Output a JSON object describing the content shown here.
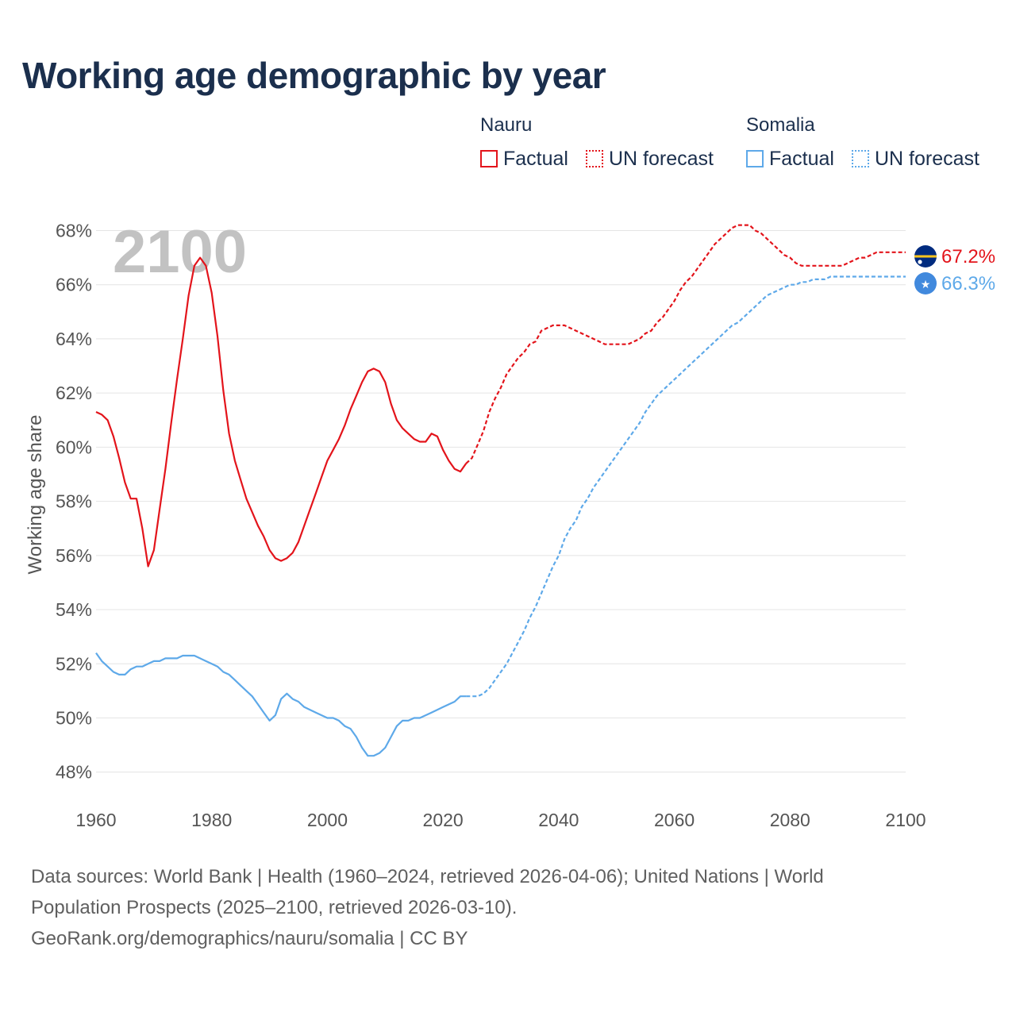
{
  "title": "Working age demographic by year",
  "legend": [
    {
      "country": "Nauru",
      "factual_label": "Factual",
      "forecast_label": "UN forecast",
      "color": "#e3141b"
    },
    {
      "country": "Somalia",
      "factual_label": "Factual",
      "forecast_label": "UN forecast",
      "color": "#5ea9e9"
    }
  ],
  "footer": {
    "line1": "Data sources: World Bank | Health (1960–2024, retrieved 2026-04-06); United Nations | World",
    "line2": "Population Prospects (2025–2100, retrieved 2026-03-10).",
    "line3": "GeoRank.org/demographics/nauru/somalia | CC BY"
  },
  "chart_data": {
    "type": "line",
    "title": "Working age demographic by year",
    "xlabel": "",
    "ylabel": "Working age share",
    "year_overlay": "2100",
    "xlim": [
      1960,
      2100
    ],
    "ylim": [
      47.2,
      68.6
    ],
    "x_ticks": [
      1960,
      1980,
      2000,
      2020,
      2040,
      2060,
      2080,
      2100
    ],
    "y_ticks": [
      48,
      50,
      52,
      54,
      56,
      58,
      60,
      62,
      64,
      66,
      68
    ],
    "y_tick_labels": [
      "48%",
      "50%",
      "52%",
      "54%",
      "56%",
      "58%",
      "60%",
      "62%",
      "64%",
      "66%",
      "68%"
    ],
    "grid": true,
    "forecast_start": 2024,
    "series": [
      {
        "name": "Nauru",
        "color": "#e3141b",
        "end_label": "67.2%",
        "points": [
          [
            1960,
            61.3
          ],
          [
            1961,
            61.2
          ],
          [
            1962,
            61.0
          ],
          [
            1963,
            60.4
          ],
          [
            1964,
            59.6
          ],
          [
            1965,
            58.7
          ],
          [
            1966,
            58.1
          ],
          [
            1967,
            58.1
          ],
          [
            1968,
            57.0
          ],
          [
            1969,
            55.6
          ],
          [
            1970,
            56.2
          ],
          [
            1971,
            57.7
          ],
          [
            1972,
            59.2
          ],
          [
            1973,
            60.9
          ],
          [
            1974,
            62.5
          ],
          [
            1975,
            64.0
          ],
          [
            1976,
            65.6
          ],
          [
            1977,
            66.7
          ],
          [
            1978,
            67.0
          ],
          [
            1979,
            66.7
          ],
          [
            1980,
            65.7
          ],
          [
            1981,
            64.1
          ],
          [
            1982,
            62.1
          ],
          [
            1983,
            60.5
          ],
          [
            1984,
            59.5
          ],
          [
            1985,
            58.8
          ],
          [
            1986,
            58.1
          ],
          [
            1987,
            57.6
          ],
          [
            1988,
            57.1
          ],
          [
            1989,
            56.7
          ],
          [
            1990,
            56.2
          ],
          [
            1991,
            55.9
          ],
          [
            1992,
            55.8
          ],
          [
            1993,
            55.9
          ],
          [
            1994,
            56.1
          ],
          [
            1995,
            56.5
          ],
          [
            1996,
            57.1
          ],
          [
            1997,
            57.7
          ],
          [
            1998,
            58.3
          ],
          [
            1999,
            58.9
          ],
          [
            2000,
            59.5
          ],
          [
            2001,
            59.9
          ],
          [
            2002,
            60.3
          ],
          [
            2003,
            60.8
          ],
          [
            2004,
            61.4
          ],
          [
            2005,
            61.9
          ],
          [
            2006,
            62.4
          ],
          [
            2007,
            62.8
          ],
          [
            2008,
            62.9
          ],
          [
            2009,
            62.8
          ],
          [
            2010,
            62.4
          ],
          [
            2011,
            61.6
          ],
          [
            2012,
            61.0
          ],
          [
            2013,
            60.7
          ],
          [
            2014,
            60.5
          ],
          [
            2015,
            60.3
          ],
          [
            2016,
            60.2
          ],
          [
            2017,
            60.2
          ],
          [
            2018,
            60.5
          ],
          [
            2019,
            60.4
          ],
          [
            2020,
            59.9
          ],
          [
            2021,
            59.5
          ],
          [
            2022,
            59.2
          ],
          [
            2023,
            59.1
          ],
          [
            2024,
            59.4
          ],
          [
            2025,
            59.6
          ],
          [
            2026,
            60.1
          ],
          [
            2027,
            60.6
          ],
          [
            2028,
            61.3
          ],
          [
            2029,
            61.8
          ],
          [
            2030,
            62.2
          ],
          [
            2031,
            62.7
          ],
          [
            2032,
            63.0
          ],
          [
            2033,
            63.3
          ],
          [
            2034,
            63.5
          ],
          [
            2035,
            63.8
          ],
          [
            2036,
            63.9
          ],
          [
            2037,
            64.3
          ],
          [
            2038,
            64.4
          ],
          [
            2039,
            64.5
          ],
          [
            2040,
            64.5
          ],
          [
            2041,
            64.5
          ],
          [
            2042,
            64.4
          ],
          [
            2043,
            64.3
          ],
          [
            2044,
            64.2
          ],
          [
            2045,
            64.1
          ],
          [
            2046,
            64.0
          ],
          [
            2047,
            63.9
          ],
          [
            2048,
            63.8
          ],
          [
            2049,
            63.8
          ],
          [
            2050,
            63.8
          ],
          [
            2051,
            63.8
          ],
          [
            2052,
            63.8
          ],
          [
            2053,
            63.9
          ],
          [
            2054,
            64.0
          ],
          [
            2055,
            64.2
          ],
          [
            2056,
            64.3
          ],
          [
            2057,
            64.6
          ],
          [
            2058,
            64.8
          ],
          [
            2059,
            65.1
          ],
          [
            2060,
            65.4
          ],
          [
            2061,
            65.8
          ],
          [
            2062,
            66.1
          ],
          [
            2063,
            66.3
          ],
          [
            2064,
            66.6
          ],
          [
            2065,
            66.9
          ],
          [
            2066,
            67.2
          ],
          [
            2067,
            67.5
          ],
          [
            2068,
            67.7
          ],
          [
            2069,
            67.9
          ],
          [
            2070,
            68.1
          ],
          [
            2071,
            68.2
          ],
          [
            2072,
            68.2
          ],
          [
            2073,
            68.2
          ],
          [
            2074,
            68.0
          ],
          [
            2075,
            67.9
          ],
          [
            2076,
            67.7
          ],
          [
            2077,
            67.5
          ],
          [
            2078,
            67.3
          ],
          [
            2079,
            67.1
          ],
          [
            2080,
            67.0
          ],
          [
            2081,
            66.8
          ],
          [
            2082,
            66.7
          ],
          [
            2083,
            66.7
          ],
          [
            2084,
            66.7
          ],
          [
            2085,
            66.7
          ],
          [
            2086,
            66.7
          ],
          [
            2087,
            66.7
          ],
          [
            2088,
            66.7
          ],
          [
            2089,
            66.7
          ],
          [
            2090,
            66.8
          ],
          [
            2091,
            66.9
          ],
          [
            2092,
            67.0
          ],
          [
            2093,
            67.0
          ],
          [
            2094,
            67.1
          ],
          [
            2095,
            67.2
          ],
          [
            2096,
            67.2
          ],
          [
            2097,
            67.2
          ],
          [
            2098,
            67.2
          ],
          [
            2099,
            67.2
          ],
          [
            2100,
            67.2
          ]
        ]
      },
      {
        "name": "Somalia",
        "color": "#5ea9e9",
        "end_label": "66.3%",
        "points": [
          [
            1960,
            52.4
          ],
          [
            1961,
            52.1
          ],
          [
            1962,
            51.9
          ],
          [
            1963,
            51.7
          ],
          [
            1964,
            51.6
          ],
          [
            1965,
            51.6
          ],
          [
            1966,
            51.8
          ],
          [
            1967,
            51.9
          ],
          [
            1968,
            51.9
          ],
          [
            1969,
            52.0
          ],
          [
            1970,
            52.1
          ],
          [
            1971,
            52.1
          ],
          [
            1972,
            52.2
          ],
          [
            1973,
            52.2
          ],
          [
            1974,
            52.2
          ],
          [
            1975,
            52.3
          ],
          [
            1976,
            52.3
          ],
          [
            1977,
            52.3
          ],
          [
            1978,
            52.2
          ],
          [
            1979,
            52.1
          ],
          [
            1980,
            52.0
          ],
          [
            1981,
            51.9
          ],
          [
            1982,
            51.7
          ],
          [
            1983,
            51.6
          ],
          [
            1984,
            51.4
          ],
          [
            1985,
            51.2
          ],
          [
            1986,
            51.0
          ],
          [
            1987,
            50.8
          ],
          [
            1988,
            50.5
          ],
          [
            1989,
            50.2
          ],
          [
            1990,
            49.9
          ],
          [
            1991,
            50.1
          ],
          [
            1992,
            50.7
          ],
          [
            1993,
            50.9
          ],
          [
            1994,
            50.7
          ],
          [
            1995,
            50.6
          ],
          [
            1996,
            50.4
          ],
          [
            1997,
            50.3
          ],
          [
            1998,
            50.2
          ],
          [
            1999,
            50.1
          ],
          [
            2000,
            50.0
          ],
          [
            2001,
            50.0
          ],
          [
            2002,
            49.9
          ],
          [
            2003,
            49.7
          ],
          [
            2004,
            49.6
          ],
          [
            2005,
            49.3
          ],
          [
            2006,
            48.9
          ],
          [
            2007,
            48.6
          ],
          [
            2008,
            48.6
          ],
          [
            2009,
            48.7
          ],
          [
            2010,
            48.9
          ],
          [
            2011,
            49.3
          ],
          [
            2012,
            49.7
          ],
          [
            2013,
            49.9
          ],
          [
            2014,
            49.9
          ],
          [
            2015,
            50.0
          ],
          [
            2016,
            50.0
          ],
          [
            2017,
            50.1
          ],
          [
            2018,
            50.2
          ],
          [
            2019,
            50.3
          ],
          [
            2020,
            50.4
          ],
          [
            2021,
            50.5
          ],
          [
            2022,
            50.6
          ],
          [
            2023,
            50.8
          ],
          [
            2024,
            50.8
          ],
          [
            2025,
            50.8
          ],
          [
            2026,
            50.8
          ],
          [
            2027,
            50.9
          ],
          [
            2028,
            51.1
          ],
          [
            2029,
            51.4
          ],
          [
            2030,
            51.7
          ],
          [
            2031,
            52.0
          ],
          [
            2032,
            52.4
          ],
          [
            2033,
            52.8
          ],
          [
            2034,
            53.2
          ],
          [
            2035,
            53.7
          ],
          [
            2036,
            54.1
          ],
          [
            2037,
            54.6
          ],
          [
            2038,
            55.1
          ],
          [
            2039,
            55.6
          ],
          [
            2040,
            56.0
          ],
          [
            2041,
            56.6
          ],
          [
            2042,
            57.0
          ],
          [
            2043,
            57.3
          ],
          [
            2044,
            57.8
          ],
          [
            2045,
            58.1
          ],
          [
            2046,
            58.5
          ],
          [
            2047,
            58.8
          ],
          [
            2048,
            59.1
          ],
          [
            2049,
            59.4
          ],
          [
            2050,
            59.7
          ],
          [
            2051,
            60.0
          ],
          [
            2052,
            60.3
          ],
          [
            2053,
            60.6
          ],
          [
            2054,
            60.9
          ],
          [
            2055,
            61.3
          ],
          [
            2056,
            61.6
          ],
          [
            2057,
            61.9
          ],
          [
            2058,
            62.1
          ],
          [
            2059,
            62.3
          ],
          [
            2060,
            62.5
          ],
          [
            2061,
            62.7
          ],
          [
            2062,
            62.9
          ],
          [
            2063,
            63.1
          ],
          [
            2064,
            63.3
          ],
          [
            2065,
            63.5
          ],
          [
            2066,
            63.7
          ],
          [
            2067,
            63.9
          ],
          [
            2068,
            64.1
          ],
          [
            2069,
            64.3
          ],
          [
            2070,
            64.5
          ],
          [
            2071,
            64.6
          ],
          [
            2072,
            64.8
          ],
          [
            2073,
            65.0
          ],
          [
            2074,
            65.2
          ],
          [
            2075,
            65.4
          ],
          [
            2076,
            65.6
          ],
          [
            2077,
            65.7
          ],
          [
            2078,
            65.8
          ],
          [
            2079,
            65.9
          ],
          [
            2080,
            66.0
          ],
          [
            2081,
            66.0
          ],
          [
            2082,
            66.1
          ],
          [
            2083,
            66.1
          ],
          [
            2084,
            66.2
          ],
          [
            2085,
            66.2
          ],
          [
            2086,
            66.2
          ],
          [
            2087,
            66.3
          ],
          [
            2088,
            66.3
          ],
          [
            2089,
            66.3
          ],
          [
            2090,
            66.3
          ],
          [
            2091,
            66.3
          ],
          [
            2092,
            66.3
          ],
          [
            2093,
            66.3
          ],
          [
            2094,
            66.3
          ],
          [
            2095,
            66.3
          ],
          [
            2096,
            66.3
          ],
          [
            2097,
            66.3
          ],
          [
            2098,
            66.3
          ],
          [
            2099,
            66.3
          ],
          [
            2100,
            66.3
          ]
        ]
      }
    ]
  }
}
